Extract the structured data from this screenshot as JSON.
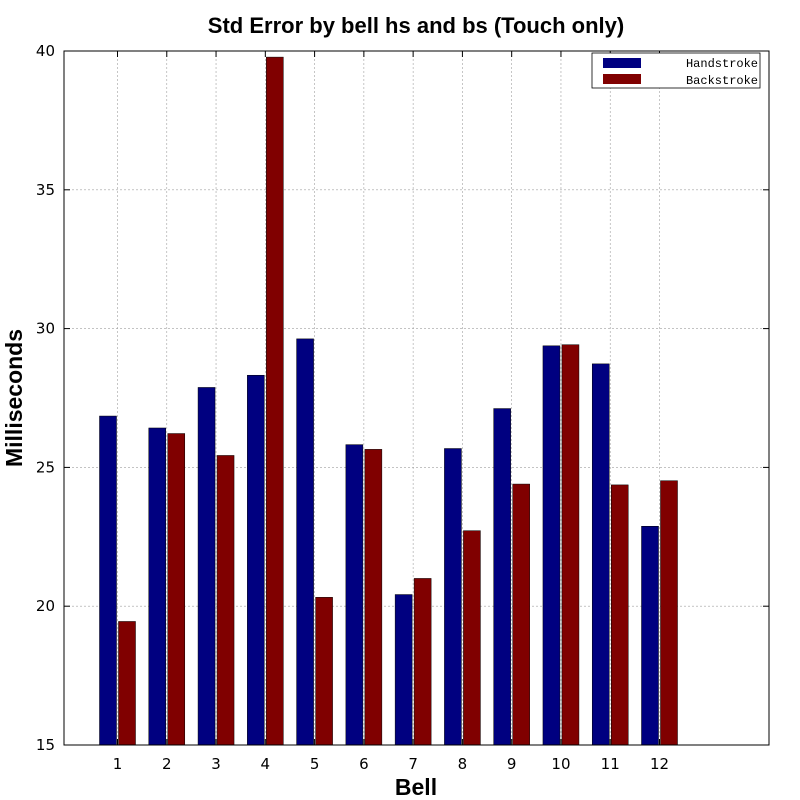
{
  "chart_data": {
    "type": "bar",
    "title": "Std Error by bell hs and bs (Touch only)",
    "xlabel": "Bell",
    "ylabel": "Milliseconds",
    "categories": [
      "1",
      "2",
      "3",
      "4",
      "5",
      "6",
      "7",
      "8",
      "9",
      "10",
      "11",
      "12"
    ],
    "series": [
      {
        "name": "Handstroke",
        "color": "#000080",
        "values": [
          26.85,
          26.42,
          27.88,
          28.32,
          29.63,
          25.82,
          20.42,
          25.68,
          27.12,
          29.38,
          28.73,
          22.88
        ]
      },
      {
        "name": "Backstroke",
        "color": "#800000",
        "values": [
          19.45,
          26.22,
          25.43,
          39.78,
          20.32,
          25.65,
          21.0,
          22.72,
          24.4,
          29.42,
          24.37,
          24.52
        ]
      }
    ],
    "ylim": [
      15,
      40
    ],
    "yticks": [
      15,
      20,
      25,
      30,
      35,
      40
    ],
    "grid": true,
    "legend_position": "top-right"
  }
}
